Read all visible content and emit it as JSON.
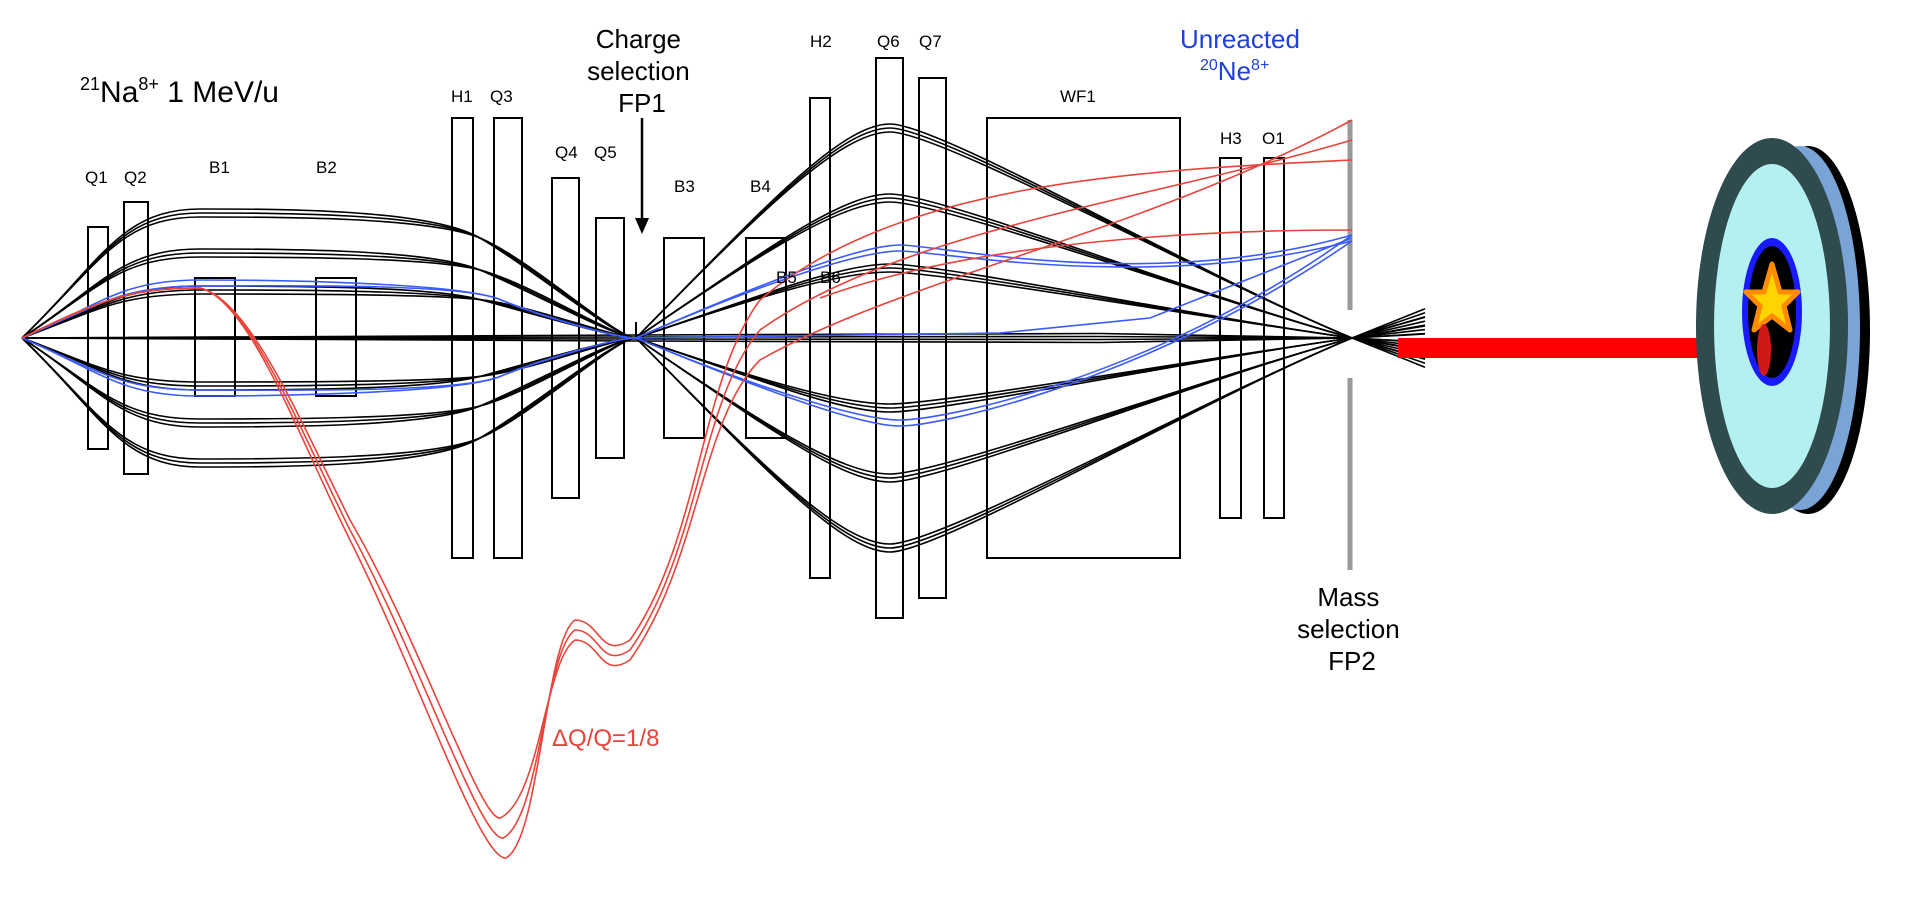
{
  "beam_label": {
    "mass": "21",
    "symbol": "Na",
    "charge": "8+",
    "energy": " 1 MeV/u"
  },
  "charge_selection": {
    "line1": "Charge",
    "line2": "selection",
    "line3": "FP1"
  },
  "unreacted": {
    "line1": "Unreacted",
    "mass": "20",
    "symbol": "Ne",
    "charge": "8+"
  },
  "mass_selection": {
    "line1": "Mass",
    "line2": "selection",
    "line3": "FP2"
  },
  "dq_label": "ΔQ/Q=1/8",
  "elements": {
    "Q1": "Q1",
    "Q2": "Q2",
    "B1": "B1",
    "B2": "B2",
    "H1": "H1",
    "Q3": "Q3",
    "Q4": "Q4",
    "Q5": "Q5",
    "B3": "B3",
    "B4": "B4",
    "B5": "B5",
    "B6": "B6",
    "H2": "H2",
    "Q6": "Q6",
    "Q7": "Q7",
    "WF1": "WF1",
    "H3": "H3",
    "O1": "O1"
  },
  "colors": {
    "trajectory": "#000000",
    "rejected_charge": "#e8443a",
    "unreacted": "#3b5bff",
    "beam": "#ff0000",
    "detector_outer": "#2f4b4e",
    "detector_inner": "#b4f0f0",
    "detector_rim": "#7aa3d6"
  }
}
